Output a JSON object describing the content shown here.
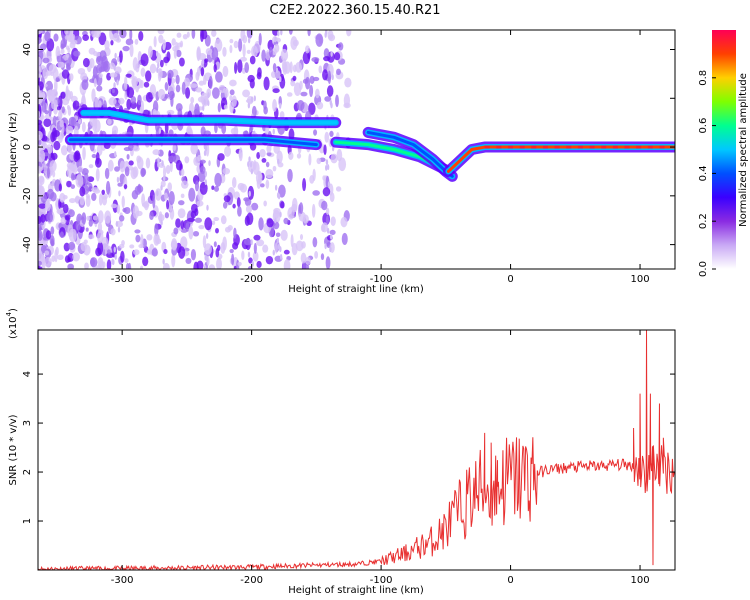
{
  "title": "C2E2.2022.360.15.40.R21",
  "chart_data": [
    {
      "type": "heatmap",
      "xlabel": "Height of straight line (km)",
      "ylabel": "Frequency (Hz)",
      "xlim": [
        -365,
        127
      ],
      "ylim": [
        -50,
        48
      ],
      "xticks": [
        -300,
        -200,
        -100,
        0,
        100
      ],
      "yticks": [
        -40,
        -20,
        0,
        20,
        40
      ],
      "colorbar": {
        "label": "Normalized spectral amplitude",
        "range": [
          0,
          1
        ],
        "ticks": [
          0.0,
          0.2,
          0.4,
          0.6,
          0.8
        ],
        "tick_labels": [
          "0.0",
          "0.2",
          "0.4",
          "0.6",
          "0.8"
        ],
        "colors": [
          "#ffffff",
          "#c9a9f5",
          "#8a2be2",
          "#3a00ff",
          "#0050ff",
          "#00c8ff",
          "#00ff90",
          "#7fff00",
          "#ffd000",
          "#ff4000",
          "#ff0055"
        ]
      },
      "traces": [
        {
          "points": [
            [
              -330,
              14
            ],
            [
              -310,
              14
            ],
            [
              -280,
              11
            ],
            [
              -260,
              11
            ],
            [
              -220,
              11
            ],
            [
              -180,
              10
            ],
            [
              -150,
              10
            ],
            [
              -135,
              10
            ]
          ],
          "amplitude": 0.45
        },
        {
          "points": [
            [
              -340,
              3
            ],
            [
              -300,
              3
            ],
            [
              -260,
              3
            ],
            [
              -230,
              3
            ],
            [
              -190,
              3
            ],
            [
              -170,
              2
            ],
            [
              -150,
              1
            ]
          ],
          "amplitude": 0.35
        },
        {
          "points": [
            [
              -135,
              2
            ],
            [
              -110,
              1
            ],
            [
              -90,
              -1
            ],
            [
              -70,
              -4
            ],
            [
              -55,
              -8
            ],
            [
              -48,
              -10
            ]
          ],
          "amplitude": 0.55
        },
        {
          "points": [
            [
              -110,
              6
            ],
            [
              -90,
              4
            ],
            [
              -75,
              1
            ],
            [
              -60,
              -5
            ],
            [
              -50,
              -10
            ],
            [
              -45,
              -12
            ]
          ],
          "amplitude": 0.4
        },
        {
          "points": [
            [
              -48,
              -10
            ],
            [
              -40,
              -6
            ],
            [
              -30,
              -1
            ],
            [
              -20,
              0
            ],
            [
              0,
              0
            ],
            [
              40,
              0
            ],
            [
              80,
              0
            ],
            [
              110,
              0
            ],
            [
              127,
              0
            ]
          ],
          "amplitude": 0.9
        }
      ],
      "series": []
    },
    {
      "type": "line",
      "xlabel": "Height of straight line (km)",
      "ylabel": "SNR (10 * v/v)",
      "y_multiplier": "(x10^4)",
      "y_multiplier_base": "(x10",
      "y_multiplier_exp": "4",
      "y_multiplier_close": ")",
      "xlim": [
        -365,
        127
      ],
      "ylim": [
        0,
        4.9
      ],
      "xticks": [
        -300,
        -200,
        -100,
        0,
        100
      ],
      "yticks": [
        1,
        2,
        3,
        4
      ],
      "color": "#e83030",
      "series": [
        {
          "x": [
            -365,
            -300,
            -200,
            -150,
            -120,
            -100,
            -80,
            -60,
            -50,
            -40,
            -30,
            -25,
            -20,
            -15,
            -10,
            0,
            10,
            20,
            30,
            40,
            50,
            60,
            70,
            80,
            90,
            100,
            105,
            110,
            115,
            120,
            127
          ],
          "values": [
            0.02,
            0.03,
            0.06,
            0.1,
            0.12,
            0.18,
            0.35,
            0.6,
            0.85,
            1.2,
            1.5,
            1.6,
            1.7,
            1.65,
            1.75,
            1.85,
            1.9,
            1.98,
            2.05,
            2.08,
            2.1,
            2.12,
            2.12,
            2.15,
            2.15,
            2.1,
            1.9,
            2.2,
            2.1,
            2.05,
            2.05
          ]
        }
      ],
      "peaks": [
        [
          -20,
          2.8
        ],
        [
          -15,
          2.6
        ],
        [
          -10,
          1.7
        ],
        [
          95,
          2.9
        ],
        [
          100,
          3.6
        ],
        [
          105,
          4.9
        ],
        [
          108,
          3.6
        ],
        [
          110,
          0.1
        ],
        [
          115,
          3.4
        ],
        [
          118,
          2.7
        ]
      ]
    }
  ]
}
